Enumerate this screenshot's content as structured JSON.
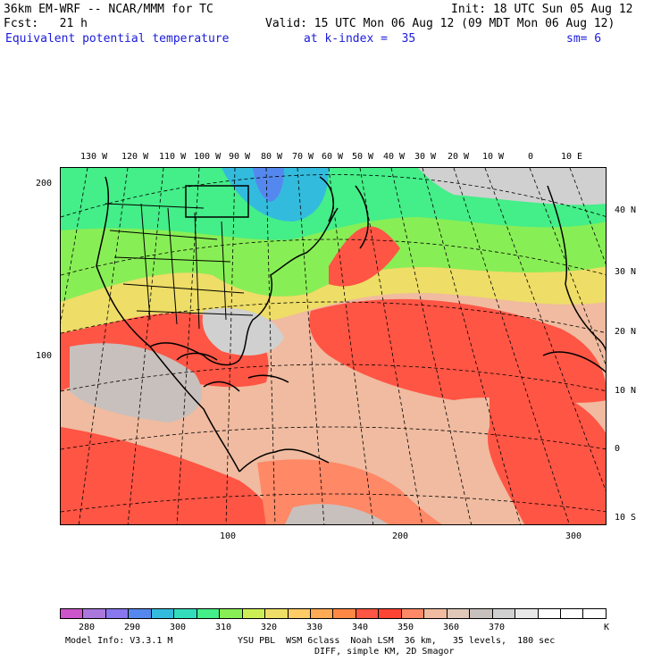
{
  "header": {
    "model": "36km EM-WRF -- NCAR/MMM for TC",
    "init": "Init: 18 UTC Sun 05 Aug 12",
    "fcst": "Fcst:   21 h",
    "valid": "Valid: 15 UTC Mon 06 Aug 12 (09 MDT Mon 06 Aug 12)",
    "field": "Equivalent potential temperature",
    "kindex": "at k-index =  35",
    "sm": "sm= 6"
  },
  "map": {
    "lon_labels": [
      "130 W",
      "120 W",
      "110 W",
      "100 W",
      "90 W",
      "80 W",
      "70 W",
      "60 W",
      "50 W",
      "40 W",
      "30 W",
      "20 W",
      "10 W",
      "0",
      "10 E"
    ],
    "lat_labels": [
      "40 N",
      "30 N",
      "20 N",
      "10 N",
      "0",
      "10 S"
    ],
    "grid_y_labels": [
      "200",
      "100"
    ],
    "grid_x_labels": [
      "100",
      "200",
      "300"
    ]
  },
  "colorbar": {
    "colors": [
      "#cc55cc",
      "#aa77dd",
      "#8877ee",
      "#5588ee",
      "#33bbdd",
      "#33ddbb",
      "#44ee88",
      "#88ee55",
      "#ccee55",
      "#eedd66",
      "#ffcc66",
      "#ffaa55",
      "#ff8844",
      "#ff5544",
      "#ff4433",
      "#ff8866",
      "#f0bba0",
      "#e0c8b8",
      "#c8c0bc",
      "#d0d0d0",
      "#e8e8e8",
      "#ffffff",
      "#ffffff",
      "#ffffff"
    ],
    "labels": [
      "280",
      "290",
      "300",
      "310",
      "320",
      "330",
      "340",
      "350",
      "360",
      "370"
    ],
    "unit": "K"
  },
  "footer": {
    "line1a": "Model Info: V3.3.1 M",
    "line1b": "YSU PBL  WSM 6class  Noah LSM  36 km,   35 levels,  180 sec",
    "line2": "DIFF, simple KM, 2D Smagor"
  }
}
